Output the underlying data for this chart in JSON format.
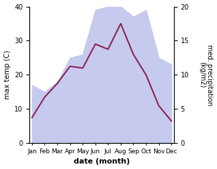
{
  "months": [
    "Jan",
    "Feb",
    "Mar",
    "Apr",
    "May",
    "Jun",
    "Jul",
    "Aug",
    "Sep",
    "Oct",
    "Nov",
    "Dec"
  ],
  "temp": [
    7.5,
    13.5,
    17.5,
    22.5,
    22.0,
    29.0,
    27.5,
    35.0,
    26.0,
    20.0,
    11.0,
    6.5
  ],
  "precip": [
    8.5,
    7.5,
    9.0,
    12.5,
    13.0,
    19.5,
    20.0,
    20.0,
    18.5,
    19.5,
    12.5,
    11.5
  ],
  "temp_color": "#8B2252",
  "precip_fill_color": "#c5caee",
  "ylabel_left": "max temp (C)",
  "ylabel_right": "med. precipitation\n(kg/m2)",
  "xlabel": "date (month)",
  "ylim_left": [
    0,
    40
  ],
  "ylim_right": [
    0,
    20
  ],
  "yticks_left": [
    0,
    10,
    20,
    30,
    40
  ],
  "yticks_right": [
    0,
    5,
    10,
    15,
    20
  ]
}
